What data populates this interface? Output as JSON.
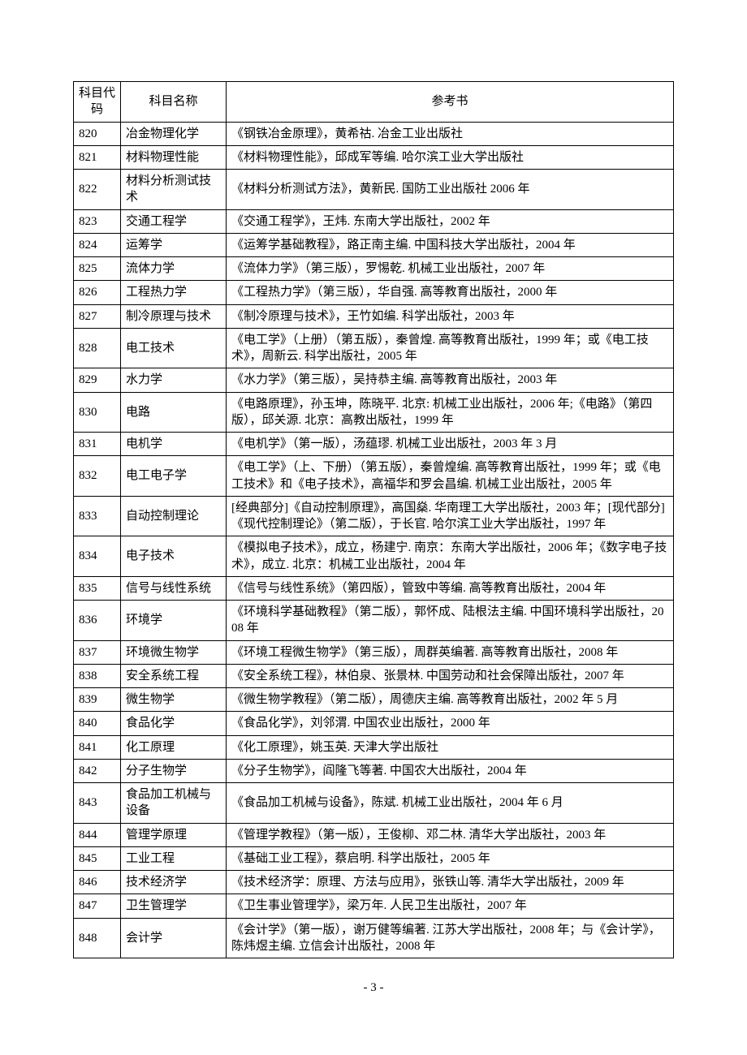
{
  "headers": {
    "code": "科目代码",
    "name": "科目名称",
    "book": "参考书"
  },
  "rows": [
    {
      "code": "820",
      "name": "冶金物理化学",
      "book": "《钢铁冶金原理》，黄希祜. 冶金工业出版社"
    },
    {
      "code": "821",
      "name": "材料物理性能",
      "book": "《材料物理性能》，邱成军等编. 哈尔滨工业大学出版社"
    },
    {
      "code": "822",
      "name": "材料分析测试技术",
      "book": "《材料分析测试方法》，黄新民. 国防工业出版社  2006 年"
    },
    {
      "code": "823",
      "name": "交通工程学",
      "book": "《交通工程学》，王炜. 东南大学出版社，2002 年"
    },
    {
      "code": "824",
      "name": "运筹学",
      "book": "《运筹学基础教程》，路正南主编. 中国科技大学出版社，2004 年"
    },
    {
      "code": "825",
      "name": "流体力学",
      "book": "《流体力学》（第三版），罗惕乾. 机械工业出版社，2007 年"
    },
    {
      "code": "826",
      "name": "工程热力学",
      "book": "《工程热力学》（第三版），华自强.  高等教育出版社，2000 年"
    },
    {
      "code": "827",
      "name": "制冷原理与技术",
      "book": "《制冷原理与技术》，王竹如编. 科学出版社，2003 年"
    },
    {
      "code": "828",
      "name": "电工技术",
      "book": "《电工学》（上册）（第五版），秦曾煌. 高等教育出版社，1999 年；或《电工技术》，周新云. 科学出版社，2005 年"
    },
    {
      "code": "829",
      "name": "水力学",
      "book": "《水力学》（第三版），吴持恭主编.  高等教育出版社，2003 年"
    },
    {
      "code": "830",
      "name": "电路",
      "book": "《电路原理》，孙玉坤，陈晓平. 北京: 机械工业出版社，2006 年;《电路》（第四版），邱关源.  北京：高教出版社，1999 年"
    },
    {
      "code": "831",
      "name": "电机学",
      "book": "《电机学》（第一版），汤蕴璆. 机械工业出版社，2003 年 3 月"
    },
    {
      "code": "832",
      "name": "电工电子学",
      "book": "《电工学》（上、下册）（第五版），秦曾煌编. 高等教育出版社，1999 年；或《电工技术》和《电子技术》，高福华和罗会昌编. 机械工业出版社，2005 年"
    },
    {
      "code": "833",
      "name": "自动控制理论",
      "book": "[经典部分]《自动控制原理》，高国燊. 华南理工大学出版社，2003 年；[现代部分]《现代控制理论》（第二版），于长官. 哈尔滨工业大学出版社，1997 年"
    },
    {
      "code": "834",
      "name": "电子技术",
      "book": "《模拟电子技术》，成立，杨建宁. 南京：东南大学出版社，2006 年；《数字电子技术》，成立. 北京：机械工业出版社，2004 年"
    },
    {
      "code": "835",
      "name": "信号与线性系统",
      "book": "《信号与线性系统》（第四版），管致中等编. 高等教育出版社，2004 年"
    },
    {
      "code": "836",
      "name": "环境学",
      "book": "《环境科学基础教程》（第二版），郭怀成、陆根法主编. 中国环境科学出版社，2008 年"
    },
    {
      "code": "837",
      "name": "环境微生物学",
      "book": "《环境工程微生物学》（第三版），周群英编著. 高等教育出版社，2008 年"
    },
    {
      "code": "838",
      "name": "安全系统工程",
      "book": "《安全系统工程》，林伯泉、张景林. 中国劳动和社会保障出版社，2007 年"
    },
    {
      "code": "839",
      "name": "微生物学",
      "book": "《微生物学教程》（第二版），周德庆主编. 高等教育出版社，2002 年 5 月"
    },
    {
      "code": "840",
      "name": "食品化学",
      "book": "《食品化学》，刘邻渭. 中国农业出版社，2000 年"
    },
    {
      "code": "841",
      "name": "化工原理",
      "book": "《化工原理》，姚玉英. 天津大学出版社"
    },
    {
      "code": "842",
      "name": "分子生物学",
      "book": "《分子生物学》，阎隆飞等著. 中国农大出版社，2004 年"
    },
    {
      "code": "843",
      "name": "食品加工机械与设备",
      "book": "《食品加工机械与设备》，陈斌. 机械工业出版社，2004 年 6 月"
    },
    {
      "code": "844",
      "name": "管理学原理",
      "book": "《管理学教程》（第一版），王俊柳、邓二林. 清华大学出版社，2003 年"
    },
    {
      "code": "845",
      "name": "工业工程",
      "book": "《基础工业工程》，蔡启明. 科学出版社，2005 年"
    },
    {
      "code": "846",
      "name": "技术经济学",
      "book": "《技术经济学：原理、方法与应用》，张铁山等. 清华大学出版社，2009 年"
    },
    {
      "code": "847",
      "name": "卫生管理学",
      "book": "《卫生事业管理学》，梁万年. 人民卫生出版社，2007 年"
    },
    {
      "code": "848",
      "name": "会计学",
      "book": "《会计学》（第一版），谢万健等编著. 江苏大学出版社，2008 年；与《会计学》，陈炜煜主编. 立信会计出版社，2008 年"
    }
  ],
  "pageNumber": "- 3 -"
}
